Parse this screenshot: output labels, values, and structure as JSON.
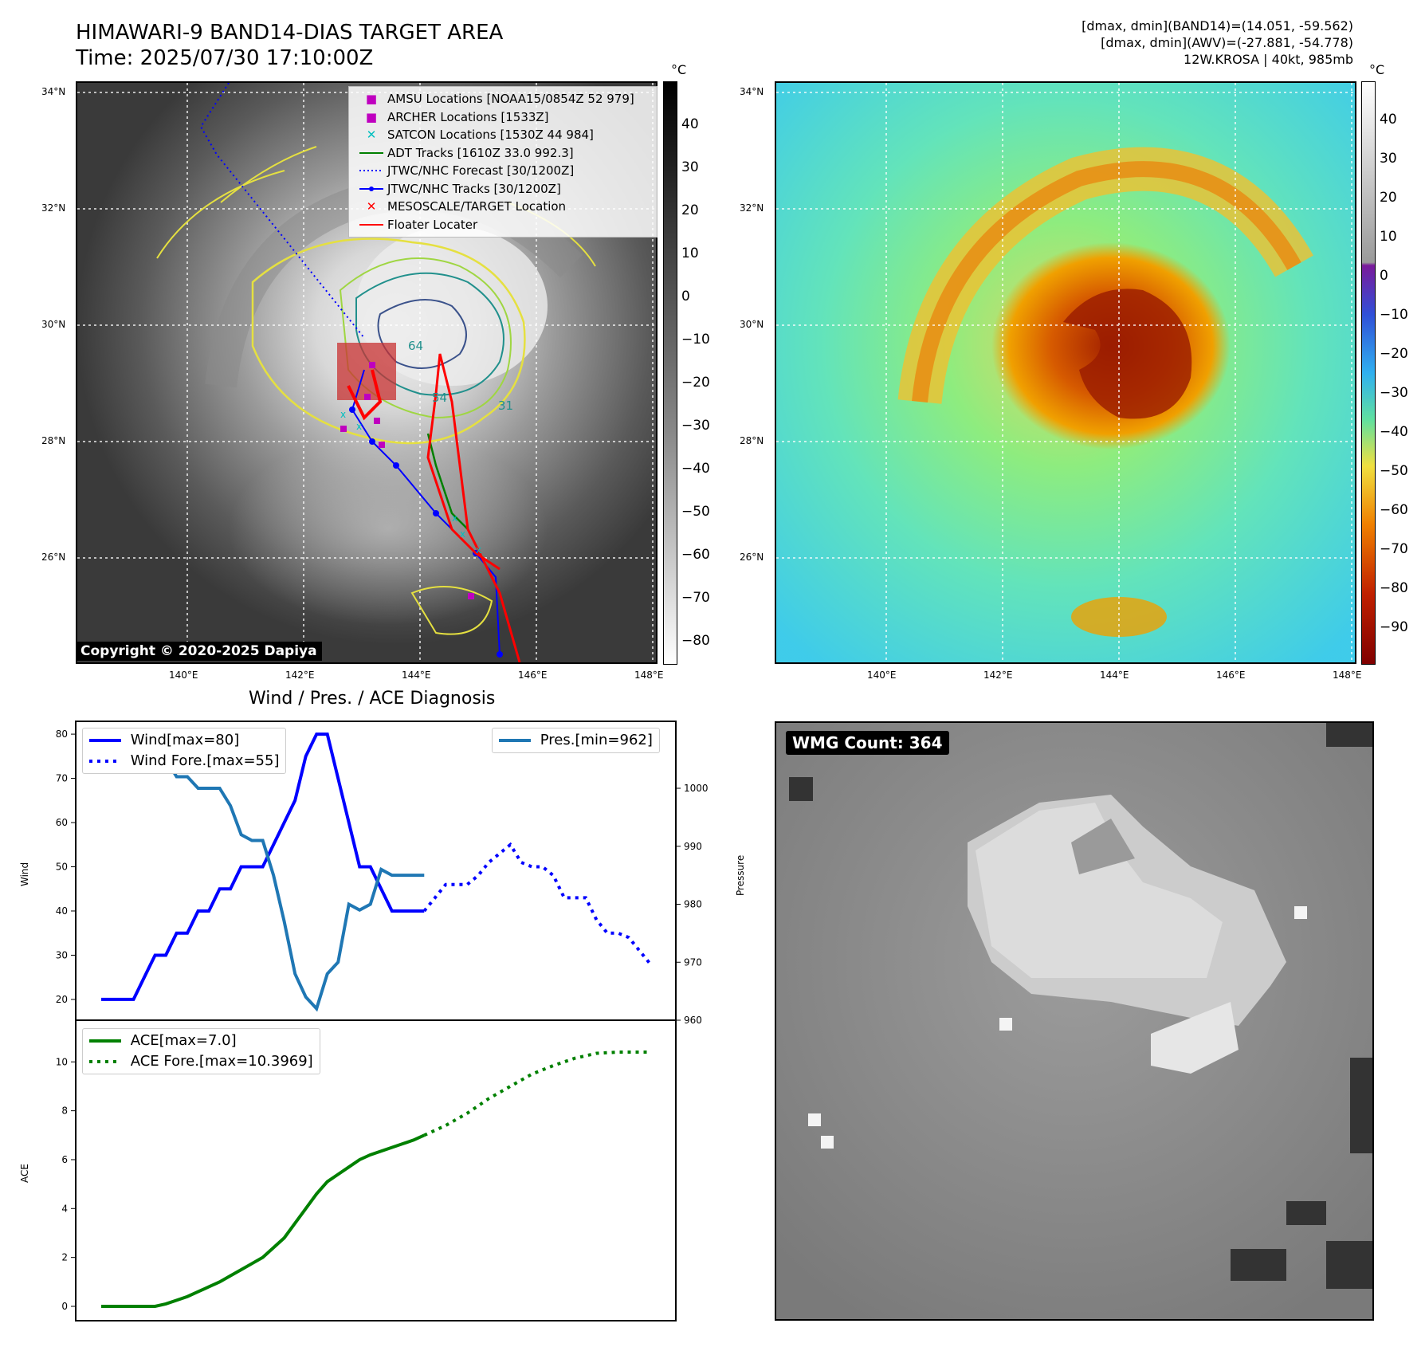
{
  "header": {
    "title": "HIMAWARI-9 BAND14-DIAS TARGET AREA",
    "time": "Time: 2025/07/30 17:10:00Z",
    "info_line1": "[dmax, dmin](BAND14)=(14.051, -59.562)",
    "info_line2": "[dmax, dmin](AWV)=(-27.881, -54.778)",
    "info_line3": "12W.KROSA | 40kt, 985mb"
  },
  "ir_map": {
    "lat_labels": [
      "34°N",
      "32°N",
      "30°N",
      "28°N",
      "26°N"
    ],
    "lon_labels": [
      "140°E",
      "142°E",
      "144°E",
      "146°E",
      "148°E"
    ],
    "copyright": "Copyright © 2020-2025 Dapiya",
    "colorbar_unit": "°C",
    "colorbar_ticks": [
      "40",
      "30",
      "20",
      "10",
      "0",
      "−10",
      "−20",
      "−30",
      "−40",
      "−50",
      "−60",
      "−70",
      "−80"
    ],
    "legend": [
      {
        "label": "AMSU Locations [NOAA15/0854Z 52 979]",
        "color": "#bf00bf",
        "marker": "square"
      },
      {
        "label": "ARCHER Locations [1533Z]",
        "color": "#bf00bf",
        "marker": "square"
      },
      {
        "label": "SATCON Locations [1530Z 44 984]",
        "color": "#00bfbf",
        "marker": "x"
      },
      {
        "label": "ADT Tracks [1610Z 33.0 992.3]",
        "color": "#008000",
        "marker": "line"
      },
      {
        "label": "JTWC/NHC Forecast [30/1200Z]",
        "color": "#0000ff",
        "marker": "dotted"
      },
      {
        "label": "JTWC/NHC Tracks [30/1200Z]",
        "color": "#0000ff",
        "marker": "line-dot"
      },
      {
        "label": "MESOSCALE/TARGET Location",
        "color": "#ff0000",
        "marker": "x"
      },
      {
        "label": "Floater Locater",
        "color": "#ff0000",
        "marker": "line"
      }
    ],
    "contour_labels": [
      "64",
      "54",
      "31"
    ]
  },
  "awv_map": {
    "lat_labels": [
      "34°N",
      "32°N",
      "30°N",
      "28°N",
      "26°N"
    ],
    "lon_labels": [
      "140°E",
      "142°E",
      "144°E",
      "146°E",
      "148°E"
    ],
    "colorbar_unit": "°C",
    "colorbar_ticks": [
      "40",
      "30",
      "20",
      "10",
      "0",
      "−10",
      "−20",
      "−30",
      "−40",
      "−50",
      "−60",
      "−70",
      "−80",
      "−90"
    ]
  },
  "diag_title": "Wind / Pres. / ACE Diagnosis",
  "wmg_label": "WMG Count: 364",
  "colors": {
    "wind": "#0000ff",
    "pres": "#1f77b4",
    "ace": "#008000"
  },
  "chart_data": [
    {
      "type": "line",
      "title": "Wind / Pres. / ACE Diagnosis",
      "ylabel": "Wind",
      "ylabel_right": "Pressure",
      "ylim": [
        18,
        82
      ],
      "ylim_right": [
        960,
        1010
      ],
      "yticks": [
        20,
        30,
        40,
        50,
        60,
        70,
        80
      ],
      "yticks_right": [
        960,
        970,
        980,
        990,
        1000
      ],
      "x": [
        0,
        1,
        2,
        3,
        4,
        5,
        6,
        7,
        8,
        9,
        10,
        11,
        12,
        13,
        14,
        15,
        16,
        17,
        18,
        19,
        20,
        21,
        22,
        23,
        24,
        25,
        26,
        27,
        28,
        29,
        30,
        31,
        32,
        33,
        34,
        35,
        36,
        37,
        38,
        39,
        40,
        41,
        42,
        43,
        44,
        45,
        46,
        47,
        48,
        49,
        50,
        51
      ],
      "series": [
        {
          "name": "Wind[max=80]",
          "style": "solid",
          "color": "#0000ff",
          "x": [
            0,
            1,
            2,
            3,
            4,
            5,
            6,
            7,
            8,
            9,
            10,
            11,
            12,
            13,
            14,
            15,
            16,
            17,
            18,
            19,
            20,
            21,
            22,
            23,
            24,
            25,
            26,
            27,
            28,
            29,
            30
          ],
          "values": [
            20,
            20,
            20,
            20,
            25,
            30,
            30,
            35,
            35,
            40,
            40,
            45,
            45,
            50,
            50,
            50,
            55,
            60,
            65,
            75,
            80,
            80,
            70,
            60,
            50,
            50,
            45,
            40,
            40,
            40,
            40
          ]
        },
        {
          "name": "Wind Fore.[max=55]",
          "style": "dotted",
          "color": "#0000ff",
          "x": [
            30,
            31,
            32,
            33,
            34,
            35,
            36,
            37,
            38,
            39,
            40,
            41,
            42,
            43,
            44,
            45,
            46,
            47,
            48,
            49,
            50,
            51
          ],
          "values": [
            40,
            43,
            46,
            46,
            46,
            48,
            51,
            53,
            55,
            51,
            50,
            50,
            48,
            43,
            43,
            43,
            38,
            35,
            35,
            34,
            31,
            28
          ]
        },
        {
          "name": "Pres.[min=962]",
          "style": "solid",
          "color": "#1f77b4",
          "axis": "right",
          "x": [
            0,
            1,
            2,
            3,
            4,
            5,
            6,
            7,
            8,
            9,
            10,
            11,
            12,
            13,
            14,
            15,
            16,
            17,
            18,
            19,
            20,
            21,
            22,
            23,
            24,
            25,
            26,
            27,
            28,
            29,
            30
          ],
          "values": [
            1008,
            1008,
            1008,
            1006,
            1006,
            1005,
            1005,
            1002,
            1002,
            1000,
            1000,
            1000,
            997,
            992,
            991,
            991,
            985,
            977,
            968,
            964,
            962,
            968,
            970,
            980,
            979,
            980,
            986,
            985,
            985,
            985,
            985
          ]
        }
      ],
      "legend": [
        "Wind[max=80]",
        "Wind Fore.[max=55]",
        "Pres.[min=962]"
      ]
    },
    {
      "type": "line",
      "ylabel": "ACE",
      "ylim": [
        -0.4,
        11
      ],
      "yticks": [
        0,
        2,
        4,
        6,
        8,
        10
      ],
      "series": [
        {
          "name": "ACE[max=7.0]",
          "style": "solid",
          "color": "#008000",
          "x": [
            0,
            1,
            2,
            3,
            4,
            5,
            6,
            7,
            8,
            9,
            10,
            11,
            12,
            13,
            14,
            15,
            16,
            17,
            18,
            19,
            20,
            21,
            22,
            23,
            24,
            25,
            26,
            27,
            28,
            29,
            30
          ],
          "values": [
            0,
            0,
            0,
            0,
            0,
            0,
            0.1,
            0.25,
            0.4,
            0.6,
            0.8,
            1.0,
            1.25,
            1.5,
            1.75,
            2.0,
            2.4,
            2.8,
            3.4,
            4.0,
            4.6,
            5.1,
            5.4,
            5.7,
            6.0,
            6.2,
            6.35,
            6.5,
            6.65,
            6.8,
            7.0
          ]
        },
        {
          "name": "ACE Fore.[max=10.3969]",
          "style": "dotted",
          "color": "#008000",
          "x": [
            30,
            32,
            34,
            36,
            38,
            40,
            42,
            44,
            46,
            48,
            50,
            51
          ],
          "values": [
            7.0,
            7.4,
            7.9,
            8.5,
            9.0,
            9.5,
            9.85,
            10.15,
            10.35,
            10.4,
            10.4,
            10.4
          ]
        }
      ],
      "legend": [
        "ACE[max=7.0]",
        "ACE Fore.[max=10.3969]"
      ]
    }
  ]
}
